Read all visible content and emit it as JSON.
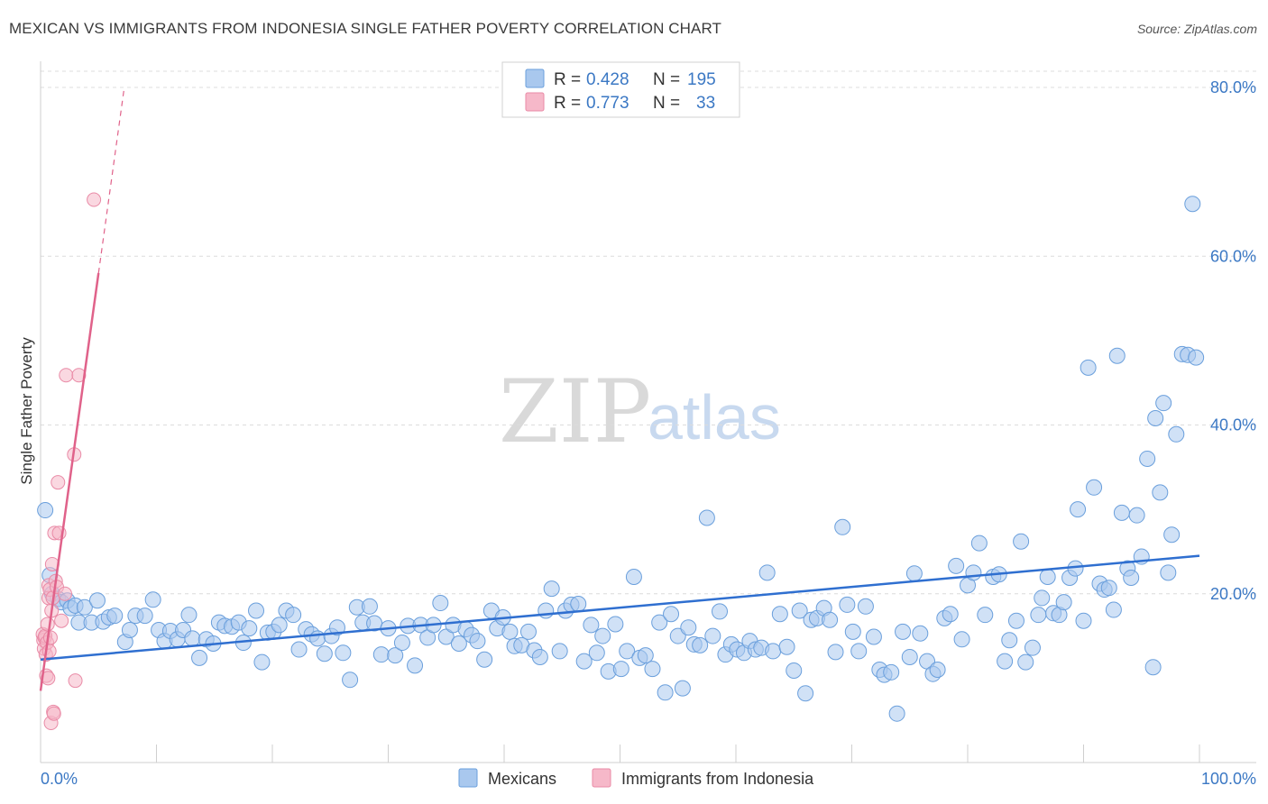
{
  "header": {
    "title": "MEXICAN VS IMMIGRANTS FROM INDONESIA SINGLE FATHER POVERTY CORRELATION CHART",
    "source": "Source: ZipAtlas.com"
  },
  "watermark": {
    "zip": "ZIP",
    "atlas": "atlas"
  },
  "colors": {
    "blue_fill": "#a9c8ee",
    "blue_stroke": "#6a9fdc",
    "blue_line": "#2f6fd0",
    "pink_fill": "#f6b8c9",
    "pink_stroke": "#e98aa6",
    "pink_line": "#e0628a",
    "tick_text": "#3b78c4",
    "grid": "#dcdcdc"
  },
  "legend_top": {
    "rows": [
      {
        "r_label": "R = ",
        "r_value": "0.428",
        "n_label": "N = ",
        "n_value": "195"
      },
      {
        "r_label": "R = ",
        "r_value": "0.773",
        "n_label": "N = ",
        "n_value": "33"
      }
    ]
  },
  "legend_bottom": {
    "series": [
      "Mexicans",
      "Immigrants from Indonesia"
    ]
  },
  "chart_data": {
    "type": "scatter",
    "title": "MEXICAN VS IMMIGRANTS FROM INDONESIA SINGLE FATHER POVERTY CORRELATION CHART",
    "xlabel": "",
    "ylabel": "Single Father Poverty",
    "xlim": [
      0,
      100
    ],
    "ylim": [
      0,
      80
    ],
    "x_tick_labels": [
      "0.0%",
      "100.0%"
    ],
    "y_ticks": [
      20,
      40,
      60,
      80
    ],
    "y_tick_labels": [
      "20.0%",
      "40.0%",
      "60.0%",
      "80.0%"
    ],
    "grid": true,
    "legend": "top-center",
    "series": [
      {
        "name": "Mexicans",
        "r": 0.428,
        "n": 195,
        "trend": {
          "x0": 0,
          "y0": 12.2,
          "x1": 100,
          "y1": 24.5
        },
        "points": [
          [
            0.4,
            29.9
          ],
          [
            0.8,
            22.2
          ],
          [
            1.0,
            20.0
          ],
          [
            1.5,
            19.4
          ],
          [
            1.8,
            19.0
          ],
          [
            2.3,
            19.2
          ],
          [
            2.6,
            18.3
          ],
          [
            3.0,
            18.6
          ],
          [
            3.3,
            16.6
          ],
          [
            3.8,
            18.4
          ],
          [
            4.4,
            16.6
          ],
          [
            4.9,
            19.2
          ],
          [
            5.4,
            16.7
          ],
          [
            5.9,
            17.2
          ],
          [
            6.4,
            17.4
          ],
          [
            7.3,
            14.3
          ],
          [
            7.7,
            15.7
          ],
          [
            8.2,
            17.4
          ],
          [
            9.0,
            17.4
          ],
          [
            9.7,
            19.3
          ],
          [
            10.2,
            15.7
          ],
          [
            10.7,
            14.4
          ],
          [
            11.2,
            15.6
          ],
          [
            11.8,
            14.6
          ],
          [
            12.3,
            15.7
          ],
          [
            12.8,
            17.5
          ],
          [
            13.1,
            14.7
          ],
          [
            13.7,
            12.4
          ],
          [
            14.3,
            14.6
          ],
          [
            14.9,
            14.1
          ],
          [
            15.4,
            16.6
          ],
          [
            15.9,
            16.2
          ],
          [
            16.5,
            16.1
          ],
          [
            17.1,
            16.6
          ],
          [
            17.5,
            14.2
          ],
          [
            18.0,
            15.9
          ],
          [
            18.6,
            18.0
          ],
          [
            19.1,
            11.9
          ],
          [
            19.6,
            15.4
          ],
          [
            20.1,
            15.5
          ],
          [
            20.6,
            16.3
          ],
          [
            21.2,
            18.0
          ],
          [
            21.8,
            17.5
          ],
          [
            22.3,
            13.4
          ],
          [
            22.9,
            15.8
          ],
          [
            23.4,
            15.2
          ],
          [
            23.9,
            14.7
          ],
          [
            24.5,
            12.9
          ],
          [
            25.1,
            15.0
          ],
          [
            25.6,
            16.0
          ],
          [
            26.1,
            13.0
          ],
          [
            26.7,
            9.8
          ],
          [
            27.3,
            18.4
          ],
          [
            27.8,
            16.6
          ],
          [
            28.4,
            18.5
          ],
          [
            28.8,
            16.5
          ],
          [
            29.4,
            12.8
          ],
          [
            30.0,
            15.9
          ],
          [
            30.6,
            12.7
          ],
          [
            31.2,
            14.2
          ],
          [
            31.7,
            16.2
          ],
          [
            32.3,
            11.5
          ],
          [
            32.8,
            16.3
          ],
          [
            33.4,
            14.8
          ],
          [
            33.9,
            16.3
          ],
          [
            34.5,
            18.9
          ],
          [
            35.0,
            14.9
          ],
          [
            35.6,
            16.3
          ],
          [
            36.1,
            14.1
          ],
          [
            36.7,
            15.8
          ],
          [
            37.2,
            15.1
          ],
          [
            37.7,
            14.4
          ],
          [
            38.3,
            12.2
          ],
          [
            38.9,
            18.0
          ],
          [
            39.4,
            15.9
          ],
          [
            39.9,
            17.2
          ],
          [
            40.5,
            15.5
          ],
          [
            40.9,
            13.8
          ],
          [
            41.5,
            13.9
          ],
          [
            42.1,
            15.5
          ],
          [
            42.6,
            13.3
          ],
          [
            43.1,
            12.5
          ],
          [
            43.6,
            18.0
          ],
          [
            44.1,
            20.6
          ],
          [
            44.8,
            13.2
          ],
          [
            45.3,
            18.0
          ],
          [
            45.8,
            18.7
          ],
          [
            46.4,
            18.8
          ],
          [
            46.9,
            12.0
          ],
          [
            47.5,
            16.3
          ],
          [
            48.0,
            13.0
          ],
          [
            48.5,
            15.0
          ],
          [
            49.0,
            10.8
          ],
          [
            49.6,
            16.4
          ],
          [
            50.1,
            11.1
          ],
          [
            50.6,
            13.2
          ],
          [
            51.2,
            22.0
          ],
          [
            51.7,
            12.4
          ],
          [
            52.2,
            12.7
          ],
          [
            52.8,
            11.1
          ],
          [
            53.4,
            16.6
          ],
          [
            53.9,
            8.3
          ],
          [
            54.4,
            17.6
          ],
          [
            55.0,
            15.0
          ],
          [
            55.4,
            8.8
          ],
          [
            55.9,
            16.0
          ],
          [
            56.4,
            14.0
          ],
          [
            56.9,
            13.9
          ],
          [
            57.5,
            29.0
          ],
          [
            58.0,
            15.0
          ],
          [
            58.6,
            17.9
          ],
          [
            59.1,
            12.8
          ],
          [
            59.6,
            14.0
          ],
          [
            60.1,
            13.4
          ],
          [
            60.7,
            13.0
          ],
          [
            61.2,
            14.4
          ],
          [
            61.7,
            13.4
          ],
          [
            62.2,
            13.6
          ],
          [
            62.7,
            22.5
          ],
          [
            63.2,
            13.2
          ],
          [
            63.8,
            17.6
          ],
          [
            64.4,
            13.7
          ],
          [
            65.0,
            10.9
          ],
          [
            65.5,
            18.0
          ],
          [
            66.0,
            8.2
          ],
          [
            66.5,
            16.9
          ],
          [
            67.0,
            17.1
          ],
          [
            67.6,
            18.3
          ],
          [
            68.1,
            16.9
          ],
          [
            68.6,
            13.1
          ],
          [
            69.2,
            27.9
          ],
          [
            69.6,
            18.7
          ],
          [
            70.1,
            15.5
          ],
          [
            70.6,
            13.2
          ],
          [
            71.2,
            18.5
          ],
          [
            71.9,
            14.9
          ],
          [
            72.4,
            11.0
          ],
          [
            72.8,
            10.4
          ],
          [
            73.4,
            10.7
          ],
          [
            73.9,
            5.8
          ],
          [
            74.4,
            15.5
          ],
          [
            75.0,
            12.5
          ],
          [
            75.4,
            22.4
          ],
          [
            75.9,
            15.3
          ],
          [
            76.5,
            12.0
          ],
          [
            77.0,
            10.5
          ],
          [
            77.4,
            11.0
          ],
          [
            78.0,
            17.1
          ],
          [
            78.5,
            17.6
          ],
          [
            79.0,
            23.3
          ],
          [
            79.5,
            14.6
          ],
          [
            80.0,
            21.0
          ],
          [
            80.5,
            22.5
          ],
          [
            81.0,
            26.0
          ],
          [
            81.5,
            17.5
          ],
          [
            82.2,
            22.0
          ],
          [
            82.7,
            22.3
          ],
          [
            83.2,
            12.0
          ],
          [
            83.6,
            14.5
          ],
          [
            84.2,
            16.8
          ],
          [
            84.6,
            26.2
          ],
          [
            85.0,
            11.9
          ],
          [
            85.6,
            13.6
          ],
          [
            86.1,
            17.5
          ],
          [
            86.4,
            19.5
          ],
          [
            86.9,
            22.0
          ],
          [
            87.4,
            17.7
          ],
          [
            87.9,
            17.5
          ],
          [
            88.3,
            19.0
          ],
          [
            88.8,
            21.9
          ],
          [
            89.3,
            23.0
          ],
          [
            89.5,
            30.0
          ],
          [
            90.0,
            16.8
          ],
          [
            90.4,
            46.8
          ],
          [
            90.9,
            32.6
          ],
          [
            91.4,
            21.2
          ],
          [
            91.8,
            20.5
          ],
          [
            92.2,
            20.7
          ],
          [
            92.6,
            18.1
          ],
          [
            92.9,
            48.2
          ],
          [
            93.3,
            29.6
          ],
          [
            93.8,
            23.0
          ],
          [
            94.1,
            21.9
          ],
          [
            94.6,
            29.3
          ],
          [
            95.0,
            24.4
          ],
          [
            95.5,
            36.0
          ],
          [
            96.0,
            11.3
          ],
          [
            96.2,
            40.8
          ],
          [
            96.6,
            32.0
          ],
          [
            96.9,
            42.6
          ],
          [
            97.3,
            22.5
          ],
          [
            97.6,
            27.0
          ],
          [
            98.0,
            38.9
          ],
          [
            98.5,
            48.4
          ],
          [
            99.0,
            48.3
          ],
          [
            99.4,
            66.2
          ],
          [
            99.7,
            48.0
          ]
        ]
      },
      {
        "name": "Immigrants from Indonesia",
        "r": 0.773,
        "n": 33,
        "trend": {
          "x0": 0,
          "y0": 8.5,
          "x1": 5.0,
          "y1": 58.0,
          "dash_to_y": 80
        },
        "points": [
          [
            0.2,
            15.2
          ],
          [
            0.25,
            14.5
          ],
          [
            0.3,
            13.5
          ],
          [
            0.35,
            14.8
          ],
          [
            0.4,
            15.0
          ],
          [
            0.45,
            12.8
          ],
          [
            0.5,
            10.3
          ],
          [
            0.55,
            14.2
          ],
          [
            0.6,
            16.4
          ],
          [
            0.65,
            10.0
          ],
          [
            0.7,
            19.5
          ],
          [
            0.7,
            21.0
          ],
          [
            0.75,
            13.2
          ],
          [
            0.8,
            20.5
          ],
          [
            0.85,
            14.8
          ],
          [
            0.9,
            4.7
          ],
          [
            0.95,
            18.0
          ],
          [
            1.0,
            23.5
          ],
          [
            1.05,
            19.5
          ],
          [
            1.1,
            6.0
          ],
          [
            1.15,
            5.8
          ],
          [
            1.2,
            27.2
          ],
          [
            1.3,
            21.5
          ],
          [
            1.4,
            20.8
          ],
          [
            1.5,
            33.2
          ],
          [
            1.6,
            27.2
          ],
          [
            1.8,
            16.8
          ],
          [
            2.1,
            20.0
          ],
          [
            2.2,
            45.9
          ],
          [
            2.9,
            36.5
          ],
          [
            3.0,
            9.7
          ],
          [
            3.3,
            45.9
          ],
          [
            4.6,
            66.7
          ]
        ]
      }
    ]
  }
}
